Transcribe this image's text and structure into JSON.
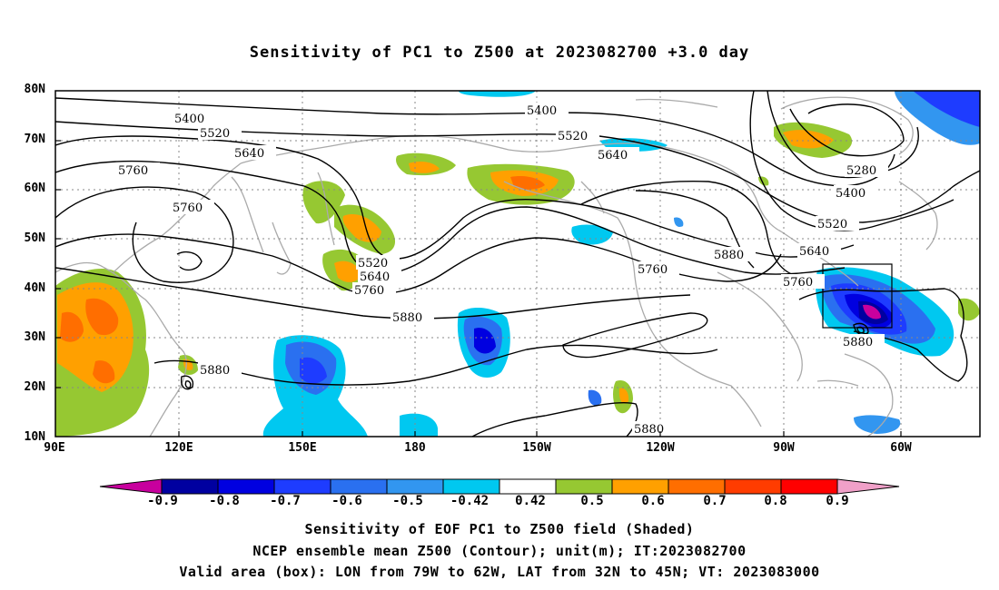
{
  "title": "Sensitivity of PC1 to Z500 at 2023082700 +3.0 day",
  "lat_labels": [
    "80N",
    "70N",
    "60N",
    "50N",
    "40N",
    "30N",
    "20N",
    "10N"
  ],
  "lon_labels": [
    "90E",
    "120E",
    "150E",
    "180",
    "150W",
    "120W",
    "90W",
    "60W"
  ],
  "contour_labels": [
    {
      "text": "5400"
    },
    {
      "text": "5400"
    },
    {
      "text": "5520"
    },
    {
      "text": "5520"
    },
    {
      "text": "5640"
    },
    {
      "text": "5640"
    },
    {
      "text": "5760"
    },
    {
      "text": "5760"
    },
    {
      "text": "5520"
    },
    {
      "text": "5640"
    },
    {
      "text": "5760"
    },
    {
      "text": "5880"
    },
    {
      "text": "5880"
    },
    {
      "text": "5760"
    },
    {
      "text": "5880"
    },
    {
      "text": "5760"
    },
    {
      "text": "5640"
    },
    {
      "text": "5520"
    },
    {
      "text": "5400"
    },
    {
      "text": "5280"
    },
    {
      "text": "5880"
    },
    {
      "text": "5880"
    }
  ],
  "colorbar": {
    "labels": [
      "-0.9",
      "-0.8",
      "-0.7",
      "-0.6",
      "-0.5",
      "-0.42",
      "0.42",
      "0.5",
      "0.6",
      "0.7",
      "0.8",
      "0.9"
    ],
    "colors": [
      "#c8009e",
      "#0000a0",
      "#0000e0",
      "#1e3cff",
      "#2a70f0",
      "#3296f0",
      "#00c8f0",
      "#ffffff",
      "#96c832",
      "#ffa000",
      "#ff6e00",
      "#ff3c00",
      "#ff0000",
      "#f0a0c8"
    ]
  },
  "captions": [
    "Sensitivity of EOF PC1 to Z500 field (Shaded)",
    "NCEP ensemble mean Z500 (Contour); unit(m); IT:2023082700",
    "Valid area (box): LON from 79W to 62W, LAT from 32N to 45N; VT: 2023083000"
  ]
}
